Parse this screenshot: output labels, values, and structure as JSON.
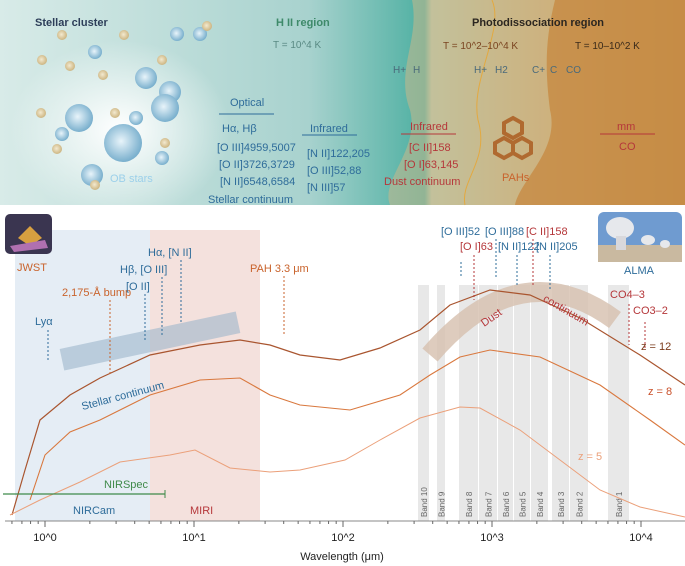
{
  "top_panel": {
    "stellar_cluster": "Stellar cluster",
    "hii_region": "H II region",
    "hii_temp": "T = 10^4 K",
    "pdr": "Photodissociation region",
    "pdr_temp1": "T = 10^2–10^4 K",
    "pdr_temp2": "T = 10–10^2 K",
    "species": [
      "H+",
      "H",
      "H+",
      "H2",
      "C+",
      "C",
      "CO"
    ],
    "ob_stars": "OB stars",
    "optical_header": "Optical",
    "optical_lines": [
      "Hα, Hβ",
      "[O III]4959,5007",
      "[O II]3726,3729",
      "[N II]6548,6584"
    ],
    "stellar_continuum": "Stellar continuum",
    "infrared_header": "Infrared",
    "infrared_lines": [
      "[N II]122,205",
      "[O III]52,88",
      "[N III]57"
    ],
    "pdr_infrared_header": "Infrared",
    "pdr_infrared_lines": [
      "[C II]158",
      "[O I]63,145",
      "Dust continuum"
    ],
    "pahs": "PAHs",
    "mm_header": "mm",
    "mm_lines": [
      "CO"
    ]
  },
  "telescopes": {
    "jwst": "JWST",
    "alma": "ALMA"
  },
  "chart_data": {
    "type": "line",
    "xlabel": "Wavelength (μm)",
    "xscale": "log",
    "xlim": [
      0.5,
      20000
    ],
    "xticks": [
      "10^0",
      "10^1",
      "10^2",
      "10^3",
      "10^4"
    ],
    "series": [
      {
        "name": "z = 12"
      },
      {
        "name": "z = 8"
      },
      {
        "name": "z = 5"
      }
    ],
    "annotations": {
      "lya": "Lyα",
      "bump": "2,175-Å bump",
      "oii": "[O II]",
      "hb_oiii": "Hβ, [O III]",
      "ha_nii": "Hα, [N II]",
      "pah": "PAH 3.3 μm",
      "stellar_continuum": "Stellar continuum",
      "dust": "Dust",
      "continuum": "continuum",
      "fir_lines_top": [
        "[O III]52",
        "[O III]88",
        "[C II]158"
      ],
      "fir_lines_bottom": [
        "[O I]63",
        "[N II]122",
        "[N II]205"
      ],
      "co43": "CO4–3",
      "co32": "CO3–2"
    },
    "instruments": {
      "nirspec": "NIRSpec",
      "nircam": "NIRCam",
      "miri": "MIRI"
    },
    "alma_bands": [
      "Band 10",
      "Band 9",
      "Band 8",
      "Band 7",
      "Band 6",
      "Band 5",
      "Band 4",
      "Band 3",
      "Band 2",
      "Band 1"
    ]
  }
}
